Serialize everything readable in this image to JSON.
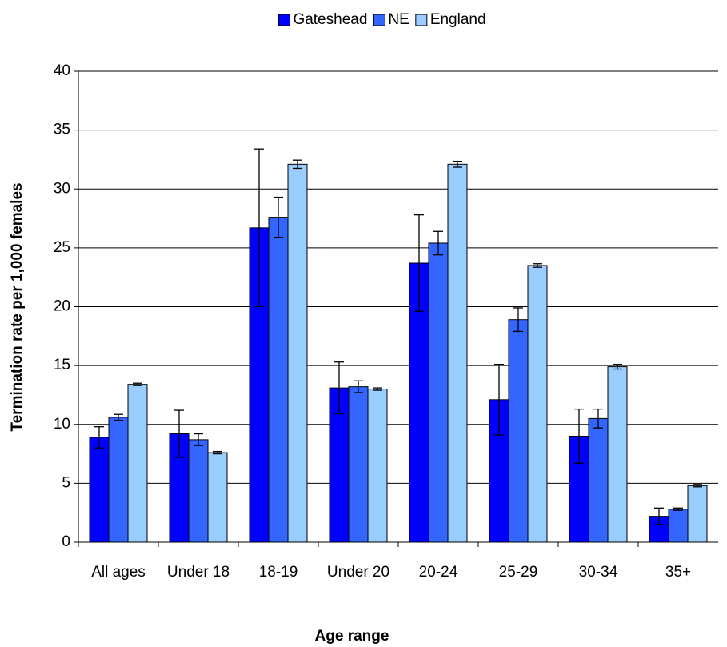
{
  "chart_data": {
    "type": "bar",
    "x_label": "Age range",
    "y_label": "Termination rate per 1,000 females",
    "categories": [
      "All ages",
      "Under 18",
      "18-19",
      "Under 20",
      "20-24",
      "25-29",
      "30-34",
      "35+"
    ],
    "series": [
      {
        "name": "Gateshead",
        "color": "#0000ff",
        "values": [
          8.9,
          9.2,
          26.7,
          13.1,
          23.7,
          12.1,
          9.0,
          2.2
        ],
        "errors": [
          0.9,
          2.0,
          6.7,
          2.2,
          4.1,
          3.0,
          2.3,
          0.7
        ]
      },
      {
        "name": "NE",
        "color": "#3366ff",
        "values": [
          10.6,
          8.7,
          27.6,
          13.2,
          25.4,
          18.9,
          10.5,
          2.8
        ],
        "errors": [
          0.25,
          0.5,
          1.7,
          0.5,
          1.0,
          1.0,
          0.8,
          0.1
        ]
      },
      {
        "name": "England",
        "color": "#99ccff",
        "values": [
          13.4,
          7.6,
          32.1,
          13.0,
          32.1,
          23.5,
          14.9,
          4.8
        ],
        "errors": [
          0.1,
          0.1,
          0.35,
          0.1,
          0.25,
          0.15,
          0.2,
          0.1
        ]
      }
    ],
    "ylim": [
      0,
      40
    ],
    "yticks": [
      0,
      5,
      10,
      15,
      20,
      25,
      30,
      35,
      40
    ],
    "grid": true,
    "legend": "top"
  }
}
